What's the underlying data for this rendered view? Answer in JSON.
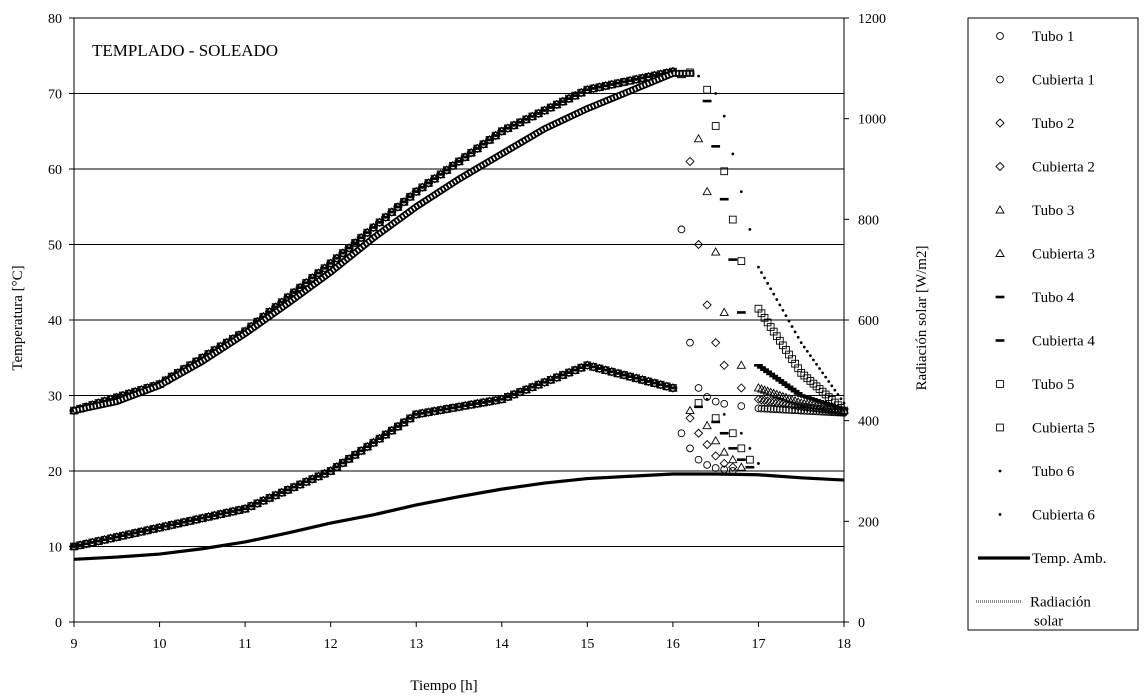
{
  "chart_data": {
    "type": "scatter",
    "title": "TEMPLADO - SOLEADO",
    "xlabel": "Tiempo [h]",
    "ylabel": "Temperatura [°C]",
    "y2label": "Radiación solar [W/m2]",
    "xlim": [
      9,
      18
    ],
    "ylim": [
      0,
      80
    ],
    "y2lim": [
      0,
      1200
    ],
    "x_ticks": [
      "9",
      "10",
      "11",
      "12",
      "13",
      "14",
      "15",
      "16",
      "17",
      "18"
    ],
    "y_ticks": [
      "0",
      "10",
      "20",
      "30",
      "40",
      "50",
      "60",
      "70",
      "80"
    ],
    "y2_ticks": [
      "0",
      "200",
      "400",
      "600",
      "800",
      "1000",
      "1200"
    ],
    "grid": "horizontal",
    "legend_position": "right",
    "series": [
      {
        "name": "Tubo 1",
        "marker": "circle-open",
        "axis": "left",
        "color": "#000000",
        "x": [
          9,
          10,
          11,
          12,
          13,
          14,
          15,
          16,
          16.1,
          16.2,
          16.3,
          16.4,
          16.5,
          16.6,
          16.8,
          17,
          17.5,
          18
        ],
        "y": [
          28,
          31.5,
          38.5,
          47.5,
          57,
          65,
          70.5,
          72.9,
          52,
          37,
          31,
          29.8,
          29.2,
          28.9,
          28.6,
          28.3,
          28,
          27.7
        ]
      },
      {
        "name": "Cubierta 1",
        "marker": "circle-open",
        "axis": "left",
        "color": "#000000",
        "x": [
          9,
          10,
          11,
          12,
          13,
          14,
          15,
          16,
          16.1,
          16.2,
          16.3,
          16.4,
          16.5,
          16.6,
          16.7
        ],
        "y": [
          10,
          12.5,
          15,
          20,
          27.5,
          29.5,
          34,
          31,
          25,
          23,
          21.5,
          20.8,
          20.4,
          20.2,
          20
        ]
      },
      {
        "name": "Tubo 2",
        "marker": "diamond-open",
        "axis": "left",
        "color": "#000000",
        "x": [
          9,
          10,
          11,
          12,
          13,
          14,
          15,
          16,
          16.2,
          16.3,
          16.4,
          16.5,
          16.6,
          16.8,
          17,
          17.5,
          18
        ],
        "y": [
          28,
          31.5,
          38.5,
          47.5,
          57,
          65,
          70.5,
          72.9,
          61,
          50,
          42,
          37,
          34,
          31,
          29.5,
          28.5,
          27.8
        ]
      },
      {
        "name": "Cubierta 2",
        "marker": "diamond-open",
        "axis": "left",
        "color": "#000000",
        "x": [
          9,
          10,
          11,
          12,
          13,
          14,
          15,
          16,
          16.2,
          16.3,
          16.4,
          16.5,
          16.6,
          16.7
        ],
        "y": [
          10,
          12.5,
          15,
          20,
          27.5,
          29.5,
          34,
          31,
          27,
          25,
          23.5,
          22,
          21,
          20.5
        ]
      },
      {
        "name": "Tubo 3",
        "marker": "triangle-open",
        "axis": "left",
        "color": "#000000",
        "x": [
          9,
          10,
          11,
          12,
          13,
          14,
          15,
          16,
          16.1,
          16.3,
          16.4,
          16.5,
          16.6,
          16.8,
          17,
          17.5,
          18
        ],
        "y": [
          28,
          31.5,
          38.5,
          47.5,
          57,
          65,
          70.5,
          72.9,
          72.5,
          64,
          57,
          49,
          41,
          34,
          31,
          29,
          28
        ]
      },
      {
        "name": "Cubierta 3",
        "marker": "triangle-open",
        "axis": "left",
        "color": "#000000",
        "x": [
          9,
          10,
          11,
          12,
          13,
          14,
          15,
          16,
          16.2,
          16.4,
          16.5,
          16.6,
          16.7,
          16.8
        ],
        "y": [
          10,
          12.5,
          15,
          20,
          27.5,
          29.5,
          34,
          31,
          28,
          26,
          24,
          22.5,
          21.5,
          20.5
        ]
      },
      {
        "name": "Tubo 4",
        "marker": "dash",
        "axis": "left",
        "color": "#000000",
        "x": [
          9,
          10,
          11,
          12,
          13,
          14,
          15,
          16,
          16.2,
          16.4,
          16.5,
          16.6,
          16.7,
          16.8,
          17,
          17.5,
          18
        ],
        "y": [
          28,
          31.5,
          38.5,
          47.5,
          57,
          65,
          70.5,
          72.9,
          72.6,
          69,
          63,
          56,
          48,
          41,
          34,
          30,
          28.2
        ]
      },
      {
        "name": "Cubierta 4",
        "marker": "dash",
        "axis": "left",
        "color": "#000000",
        "x": [
          9,
          10,
          11,
          12,
          13,
          14,
          15,
          16,
          16.3,
          16.5,
          16.6,
          16.7,
          16.8,
          16.9
        ],
        "y": [
          10,
          12.5,
          15,
          20,
          27.5,
          29.5,
          34,
          31,
          28.5,
          26.5,
          25,
          23,
          21.5,
          20.5
        ]
      },
      {
        "name": "Tubo 5",
        "marker": "square-open",
        "axis": "left",
        "color": "#000000",
        "x": [
          9,
          10,
          11,
          12,
          13,
          14,
          15,
          16,
          16.2,
          16.4,
          16.5,
          16.6,
          16.7,
          16.8,
          17,
          17.5,
          18
        ],
        "y": [
          28,
          31.5,
          38.5,
          47.5,
          57,
          65,
          70.5,
          72.9,
          72.8,
          70.5,
          65.7,
          59.7,
          53.3,
          47.8,
          41.5,
          33,
          28
        ]
      },
      {
        "name": "Cubierta 5",
        "marker": "square-open",
        "axis": "left",
        "color": "#000000",
        "x": [
          9,
          10,
          11,
          12,
          13,
          14,
          15,
          16,
          16.3,
          16.5,
          16.7,
          16.8,
          16.9
        ],
        "y": [
          10,
          12.5,
          15,
          20,
          27.5,
          29.5,
          34,
          31,
          29,
          27,
          25,
          23,
          21.5
        ]
      },
      {
        "name": "Tubo 6",
        "marker": "dot",
        "axis": "left",
        "color": "#000000",
        "x": [
          9,
          10,
          11,
          12,
          13,
          14,
          15,
          16,
          16.3,
          16.5,
          16.6,
          16.7,
          16.8,
          16.9,
          17,
          17.5,
          18
        ],
        "y": [
          28,
          31.5,
          38.5,
          47.5,
          57,
          65,
          70.5,
          72.9,
          72.3,
          70,
          67,
          62,
          57,
          52,
          47,
          37,
          29
        ]
      },
      {
        "name": "Cubierta 6",
        "marker": "dot",
        "axis": "left",
        "color": "#000000",
        "x": [
          9,
          10,
          11,
          12,
          13,
          14,
          15,
          16,
          16.4,
          16.6,
          16.8,
          16.9,
          17
        ],
        "y": [
          10,
          12.5,
          15,
          20,
          27.5,
          29.5,
          34,
          31,
          29.5,
          27.5,
          25,
          23,
          21
        ]
      },
      {
        "name": "Temp. Amb.",
        "marker": "line-thick",
        "axis": "left",
        "color": "#000000",
        "x": [
          9,
          9.5,
          10,
          10.5,
          11,
          11.5,
          12,
          12.5,
          13,
          13.5,
          14,
          14.5,
          15,
          15.5,
          16,
          16.5,
          17,
          17.5,
          18
        ],
        "y": [
          8.3,
          8.6,
          9,
          9.7,
          10.6,
          11.8,
          13.1,
          14.2,
          15.5,
          16.6,
          17.6,
          18.4,
          19,
          19.3,
          19.6,
          19.6,
          19.5,
          19.1,
          18.8
        ]
      },
      {
        "name": "Radiación solar",
        "marker": "line-hatched",
        "axis": "right",
        "color": "#000000",
        "x": [
          9,
          9.5,
          10,
          10.5,
          11,
          11.5,
          12,
          12.5,
          13,
          13.5,
          14,
          14.5,
          15,
          15.5,
          16,
          16.25
        ],
        "y": [
          420,
          438,
          470,
          518,
          573,
          633,
          695,
          763,
          825,
          880,
          930,
          980,
          1020,
          1055,
          1090,
          1090
        ]
      }
    ]
  }
}
